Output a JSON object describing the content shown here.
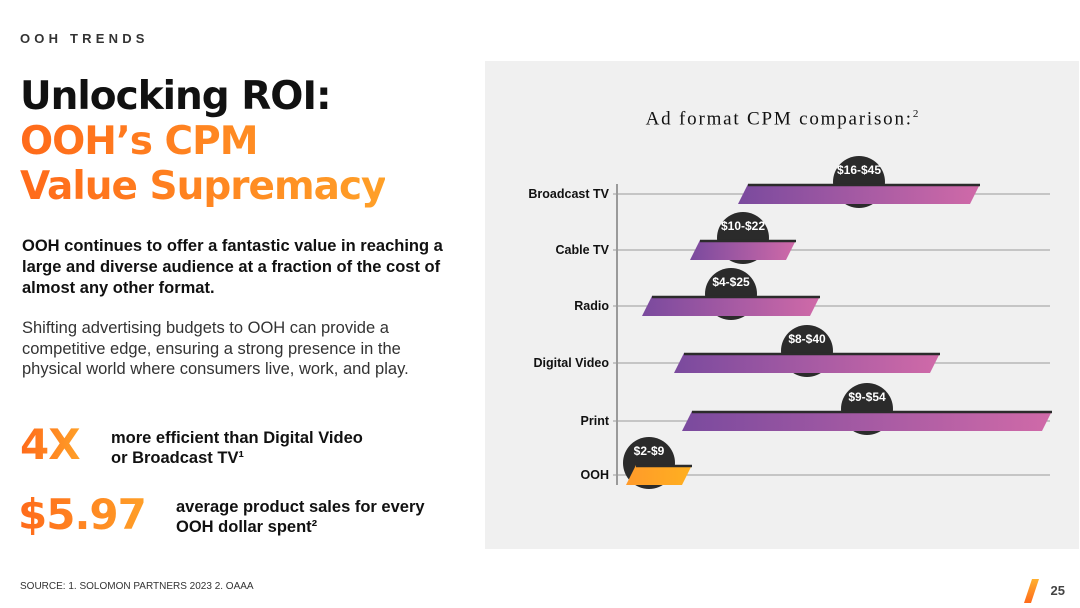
{
  "header": {
    "eyebrow": "OOH TRENDS"
  },
  "title": {
    "line1": "Unlocking ROI:",
    "line2": "OOH’s CPM",
    "line3": "Value Supremacy"
  },
  "lead": "OOH continues to offer a fantastic value in reaching a large and diverse audience at a fraction of the cost of almost any other format.",
  "body": "Shifting advertising budgets to OOH can provide a competitive edge, ensuring a strong presence in the physical world where consumers live, work, and play.",
  "stats": [
    {
      "value": "4X",
      "text": "more efficient than Digital Video or Broadcast TV¹"
    },
    {
      "value": "$5.97",
      "text": "average product sales for every OOH dollar spent²"
    }
  ],
  "footer": {
    "source": "SOURCE: 1. SOLOMON PARTNERS 2023  2. OAAA",
    "page": "25"
  },
  "colors": {
    "accent_orange": "#ff7a1a",
    "accent_yellow": "#ffa028",
    "bar_purple": "#7a4a9e",
    "bar_pink": "#d06aa8",
    "badge": "#2b2b2b"
  },
  "chart_data": {
    "type": "bar",
    "orientation": "horizontal-range",
    "title": "Ad format CPM comparison:",
    "title_sup": "2",
    "categories": [
      "Broadcast TV",
      "Cable TV",
      "Radio",
      "Digital Video",
      "Print",
      "OOH"
    ],
    "ranges": [
      {
        "category": "Broadcast TV",
        "min": 16,
        "max": 45,
        "label": "$16-$45"
      },
      {
        "category": "Cable TV",
        "min": 10,
        "max": 22,
        "label": "$10-$22"
      },
      {
        "category": "Radio",
        "min": 4,
        "max": 25,
        "label": "$4-$25"
      },
      {
        "category": "Digital Video",
        "min": 8,
        "max": 40,
        "label": "$8-$40"
      },
      {
        "category": "Print",
        "min": 9,
        "max": 54,
        "label": "$9-$54"
      },
      {
        "category": "OOH",
        "min": 2,
        "max": 9,
        "label": "$2-$9"
      }
    ],
    "xlim": [
      0,
      54
    ],
    "grid": true,
    "highlight": "OOH"
  }
}
